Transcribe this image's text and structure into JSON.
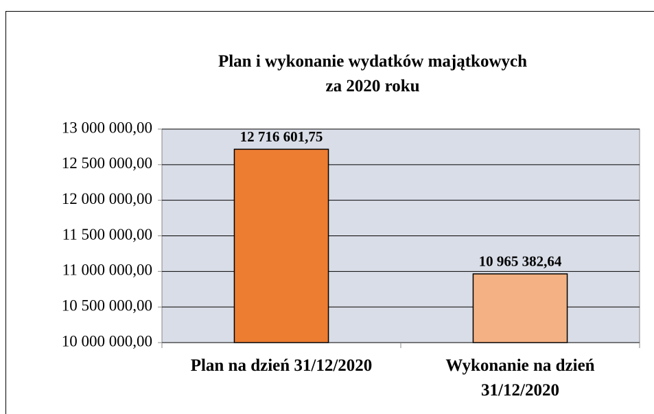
{
  "chart_data": {
    "type": "bar",
    "title": "Plan i wykonanie wydatków majątkowych\nza 2020 roku",
    "categories": [
      "Plan na dzień 31/12/2020",
      "Wykonanie na dzień\n31/12/2020"
    ],
    "values": [
      12716601.75,
      10965382.64
    ],
    "value_labels": [
      "12 716 601,75",
      "10 965 382,64"
    ],
    "colors": [
      "#ed7d31",
      "#f4b183"
    ],
    "ylim": [
      10000000,
      13000000
    ],
    "yticks": [
      {
        "value": 10000000,
        "label": "10 000 000,00"
      },
      {
        "value": 10500000,
        "label": "10 500 000,00"
      },
      {
        "value": 11000000,
        "label": "11 000 000,00"
      },
      {
        "value": 11500000,
        "label": "11 500 000,00"
      },
      {
        "value": 12000000,
        "label": "12 000 000,00"
      },
      {
        "value": 12500000,
        "label": "12 500 000,00"
      },
      {
        "value": 13000000,
        "label": "13 000 000,00"
      }
    ],
    "grid": true
  }
}
